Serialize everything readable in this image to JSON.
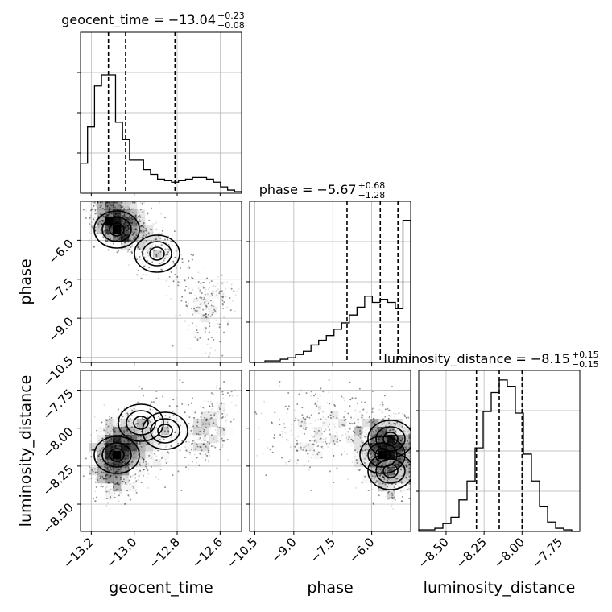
{
  "chart_data": {
    "type": "corner",
    "parameters": [
      "geocent_time",
      "phase",
      "luminosity_distance"
    ],
    "axis_labels": {
      "geocent_time": "geocent_time",
      "phase": "phase",
      "luminosity_distance": "luminosity_distance"
    },
    "ranges": {
      "geocent_time": [
        -13.25,
        -12.5
      ],
      "phase": [
        -10.7,
        -4.5
      ],
      "luminosity_distance": [
        -8.68,
        -7.62
      ]
    },
    "ticks": {
      "geocent_time": [
        -13.2,
        -13.0,
        -12.8,
        -12.6
      ],
      "phase": [
        -10.5,
        -9.0,
        -7.5,
        -6.0
      ],
      "luminosity_distance": [
        -8.5,
        -8.25,
        -8.0,
        -7.75
      ]
    },
    "tick_labels": {
      "geocent_time": [
        "−13.2",
        "−13.0",
        "−12.8",
        "−12.6"
      ],
      "phase": [
        "−10.5",
        "−9.0",
        "−7.5",
        "−6.0"
      ],
      "luminosity_distance": [
        "−8.50",
        "−8.25",
        "−8.00",
        "−7.75"
      ]
    },
    "titles": [
      {
        "param": "geocent_time",
        "main": "geocent_time = −13.04",
        "plus": "+0.23",
        "minus": "−0.08"
      },
      {
        "param": "phase",
        "main": "phase = −5.67",
        "plus": "+0.68",
        "minus": "−1.28"
      },
      {
        "param": "luminosity_distance",
        "main": "luminosity_distance = −8.15",
        "plus": "+0.15",
        "minus": "−0.15"
      }
    ],
    "quantiles": {
      "geocent_time": [
        -13.12,
        -13.04,
        -12.81
      ],
      "phase": [
        -6.95,
        -5.67,
        -4.99
      ],
      "luminosity_distance": [
        -8.3,
        -8.15,
        -8.0
      ]
    },
    "histograms": {
      "geocent_time": [
        0.19,
        0.42,
        0.68,
        0.75,
        0.75,
        0.45,
        0.34,
        0.21,
        0.21,
        0.15,
        0.12,
        0.09,
        0.08,
        0.07,
        0.08,
        0.09,
        0.1,
        0.1,
        0.09,
        0.07,
        0.04,
        0.02,
        0.01
      ],
      "phase": [
        0.0,
        0.0,
        0.01,
        0.01,
        0.02,
        0.03,
        0.05,
        0.07,
        0.11,
        0.14,
        0.17,
        0.21,
        0.25,
        0.3,
        0.35,
        0.42,
        0.38,
        0.4,
        0.38,
        0.34,
        0.9
      ],
      "luminosity_distance": [
        0.01,
        0.01,
        0.02,
        0.05,
        0.09,
        0.2,
        0.32,
        0.53,
        0.76,
        0.88,
        0.96,
        0.92,
        0.75,
        0.49,
        0.32,
        0.16,
        0.06,
        0.02,
        0.01,
        0.0
      ]
    },
    "grid": true,
    "grid_color": "#b0b0b0",
    "density_color": "#000000"
  }
}
